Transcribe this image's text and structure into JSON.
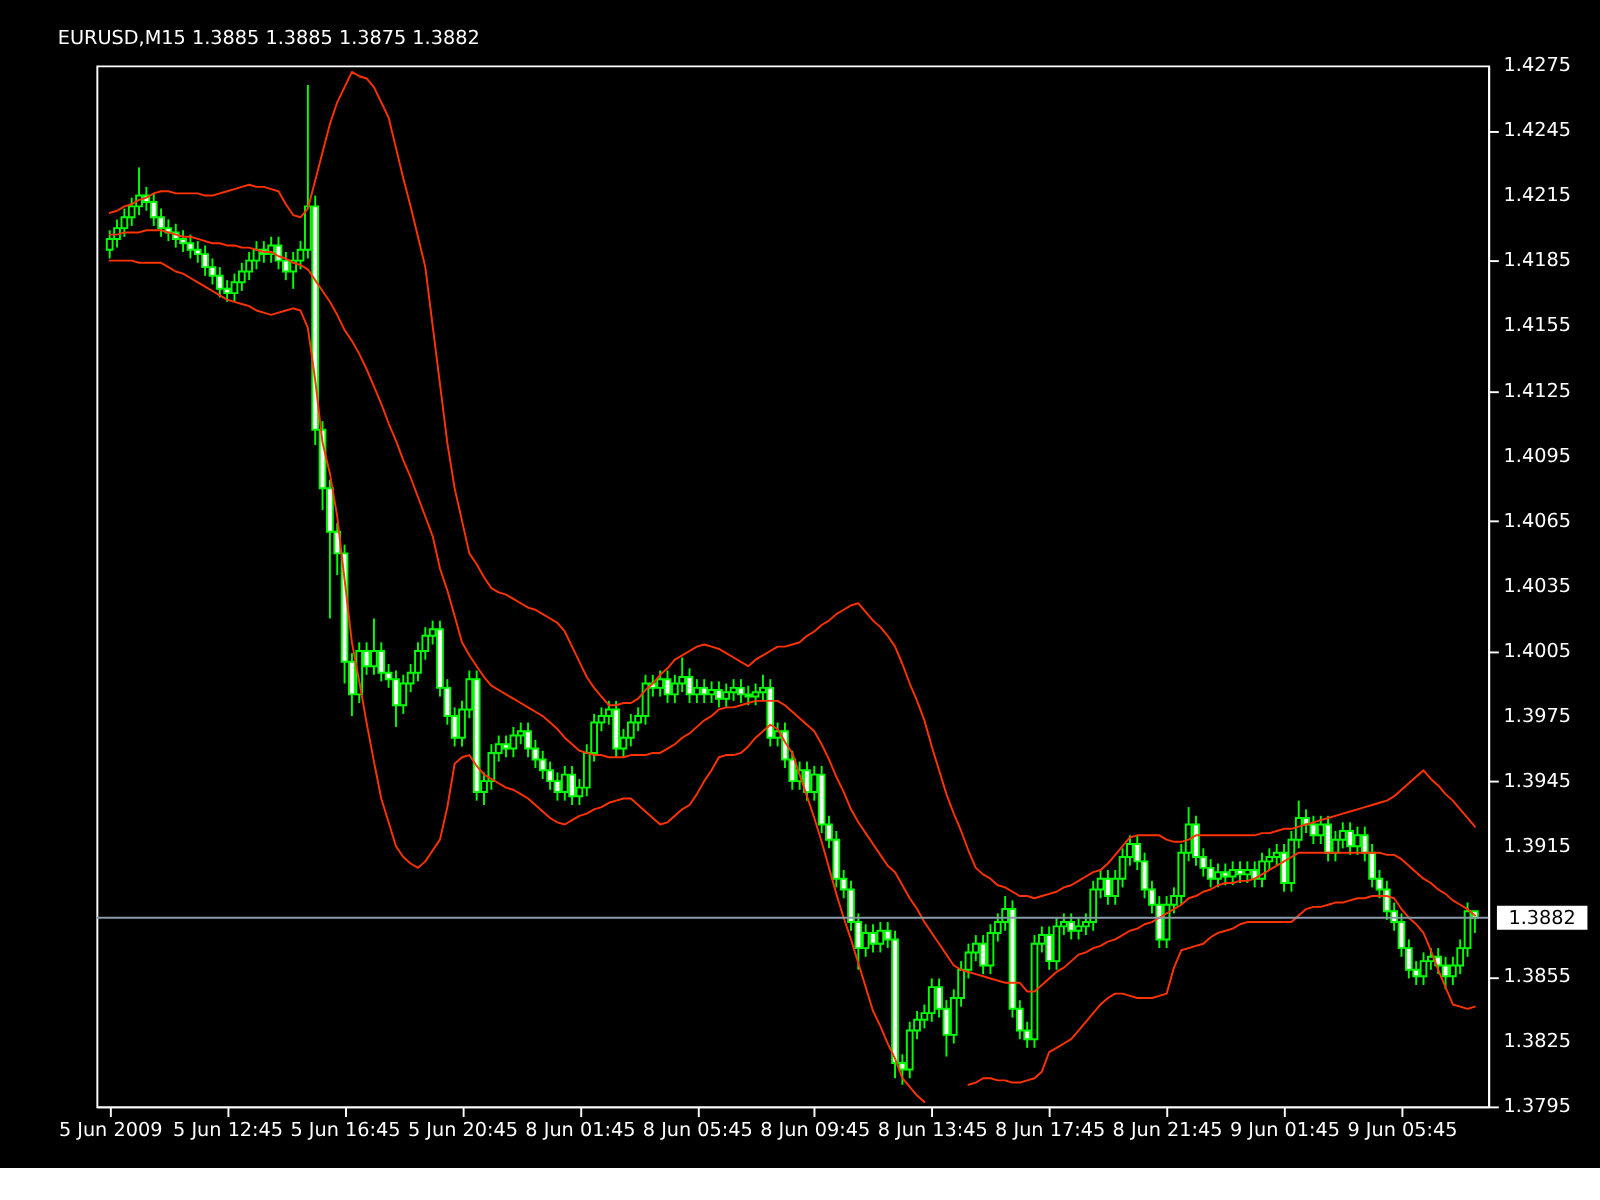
{
  "chart_data": {
    "type": "candlestick",
    "title": "EURUSD,M15 1.3885 1.3885 1.3875 1.3882",
    "color": "#00ff00",
    "categories": [
      "5 Jun 2009",
      null,
      null,
      null,
      null,
      null,
      null,
      null,
      null,
      null,
      null,
      null,
      null,
      null,
      null,
      null,
      "5 Jun 12:45",
      null,
      null,
      null,
      null,
      null,
      null,
      null,
      null,
      null,
      null,
      null,
      null,
      null,
      null,
      null,
      "5 Jun 16:45",
      null,
      null,
      null,
      null,
      null,
      null,
      null,
      null,
      null,
      null,
      null,
      null,
      null,
      null,
      null,
      "5 Jun 20:45",
      null,
      null,
      null,
      null,
      null,
      null,
      null,
      null,
      null,
      null,
      null,
      null,
      null,
      null,
      null,
      "8 Jun 01:45",
      null,
      null,
      null,
      null,
      null,
      null,
      null,
      null,
      null,
      null,
      null,
      null,
      null,
      null,
      null,
      "8 Jun 05:45",
      null,
      null,
      null,
      null,
      null,
      null,
      null,
      null,
      null,
      null,
      null,
      null,
      null,
      null,
      null,
      "8 Jun 09:45",
      null,
      null,
      null,
      null,
      null,
      null,
      null,
      null,
      null,
      null,
      null,
      null,
      null,
      null,
      null,
      "8 Jun 13:45",
      null,
      null,
      null,
      null,
      null,
      null,
      null,
      null,
      null,
      null,
      null,
      null,
      null,
      null,
      null,
      "8 Jun 17:45",
      null,
      null,
      null,
      null,
      null,
      null,
      null,
      null,
      null,
      null,
      null,
      null,
      null,
      null,
      null,
      "8 Jun 21:45",
      null,
      null,
      null,
      null,
      null,
      null,
      null,
      null,
      null,
      null,
      null,
      null,
      null,
      null,
      null,
      "9 Jun 01:45",
      null,
      null,
      null,
      null,
      null,
      null,
      null,
      null,
      null,
      null,
      null,
      null,
      null,
      null,
      null,
      "9 Jun 05:45",
      null,
      null,
      null,
      null,
      null,
      null,
      null,
      null,
      null,
      null
    ],
    "ohlc": [
      [
        1.419,
        1.4199,
        1.4186,
        1.4195
      ],
      [
        1.4195,
        1.4204,
        1.4191,
        1.42
      ],
      [
        1.42,
        1.4209,
        1.4196,
        1.4205
      ],
      [
        1.4205,
        1.4214,
        1.4201,
        1.421
      ],
      [
        1.421,
        1.4228,
        1.4206,
        1.4215
      ],
      [
        1.4215,
        1.4219,
        1.4208,
        1.4212
      ],
      [
        1.4212,
        1.4216,
        1.4201,
        1.4205
      ],
      [
        1.4205,
        1.4209,
        1.4196,
        1.42
      ],
      [
        1.42,
        1.4204,
        1.4194,
        1.4198
      ],
      [
        1.4198,
        1.4202,
        1.4191,
        1.4195
      ],
      [
        1.4195,
        1.4199,
        1.4189,
        1.4193
      ],
      [
        1.4193,
        1.4197,
        1.4186,
        1.419
      ],
      [
        1.419,
        1.4194,
        1.4184,
        1.4188
      ],
      [
        1.4188,
        1.4192,
        1.4178,
        1.4182
      ],
      [
        1.4182,
        1.4186,
        1.4174,
        1.4178
      ],
      [
        1.4178,
        1.4182,
        1.4168,
        1.4172
      ],
      [
        1.4172,
        1.4176,
        1.4166,
        1.417
      ],
      [
        1.417,
        1.4179,
        1.4166,
        1.4175
      ],
      [
        1.4175,
        1.4184,
        1.4171,
        1.418
      ],
      [
        1.418,
        1.4189,
        1.4176,
        1.4185
      ],
      [
        1.4185,
        1.4194,
        1.4181,
        1.419
      ],
      [
        1.419,
        1.4194,
        1.4184,
        1.4188
      ],
      [
        1.4188,
        1.4196,
        1.4184,
        1.4192
      ],
      [
        1.4192,
        1.4196,
        1.4181,
        1.4185
      ],
      [
        1.4185,
        1.4189,
        1.4176,
        1.418
      ],
      [
        1.418,
        1.4189,
        1.4172,
        1.4185
      ],
      [
        1.4185,
        1.4194,
        1.4181,
        1.419
      ],
      [
        1.419,
        1.4266,
        1.4186,
        1.421
      ],
      [
        1.421,
        1.4215,
        1.41,
        1.4107
      ],
      [
        1.4107,
        1.4111,
        1.407,
        1.408
      ],
      [
        1.408,
        1.4084,
        1.402,
        1.406
      ],
      [
        1.406,
        1.4064,
        1.404,
        1.405
      ],
      [
        1.405,
        1.4054,
        1.399,
        1.4
      ],
      [
        1.4,
        1.4004,
        1.3975,
        1.3985
      ],
      [
        1.3985,
        1.4009,
        1.3981,
        1.4005
      ],
      [
        1.4005,
        1.4009,
        1.3994,
        1.3998
      ],
      [
        1.3998,
        1.402,
        1.3994,
        1.4005
      ],
      [
        1.4005,
        1.4009,
        1.3991,
        1.3995
      ],
      [
        1.3995,
        1.3999,
        1.3988,
        1.3992
      ],
      [
        1.3992,
        1.3996,
        1.397,
        1.398
      ],
      [
        1.398,
        1.3994,
        1.3976,
        1.399
      ],
      [
        1.399,
        1.3999,
        1.3986,
        1.3995
      ],
      [
        1.3995,
        1.4009,
        1.3991,
        1.4005
      ],
      [
        1.4005,
        1.4016,
        1.4001,
        1.4012
      ],
      [
        1.4012,
        1.4019,
        1.4008,
        1.4015
      ],
      [
        1.4015,
        1.4019,
        1.3984,
        1.3988
      ],
      [
        1.3988,
        1.3992,
        1.3971,
        1.3975
      ],
      [
        1.3975,
        1.3979,
        1.3961,
        1.3965
      ],
      [
        1.3965,
        1.3982,
        1.3961,
        1.3978
      ],
      [
        1.3978,
        1.3996,
        1.3974,
        1.3992
      ],
      [
        1.3992,
        1.3996,
        1.3936,
        1.394
      ],
      [
        1.394,
        1.3949,
        1.3934,
        1.3945
      ],
      [
        1.3945,
        1.3962,
        1.3941,
        1.3958
      ],
      [
        1.3958,
        1.3966,
        1.3954,
        1.3962
      ],
      [
        1.3962,
        1.3966,
        1.3956,
        1.396
      ],
      [
        1.396,
        1.397,
        1.3956,
        1.3966
      ],
      [
        1.3966,
        1.3972,
        1.3962,
        1.3968
      ],
      [
        1.3968,
        1.3972,
        1.3956,
        1.396
      ],
      [
        1.396,
        1.3964,
        1.3951,
        1.3955
      ],
      [
        1.3955,
        1.3959,
        1.3946,
        1.395
      ],
      [
        1.395,
        1.3954,
        1.3941,
        1.3945
      ],
      [
        1.3945,
        1.3949,
        1.3936,
        1.394
      ],
      [
        1.394,
        1.3952,
        1.3936,
        1.3948
      ],
      [
        1.3948,
        1.3952,
        1.3934,
        1.3938
      ],
      [
        1.3938,
        1.3946,
        1.3934,
        1.3942
      ],
      [
        1.3942,
        1.3962,
        1.3938,
        1.3958
      ],
      [
        1.3958,
        1.3976,
        1.3954,
        1.3972
      ],
      [
        1.3972,
        1.3979,
        1.3968,
        1.3975
      ],
      [
        1.3975,
        1.3982,
        1.3971,
        1.3978
      ],
      [
        1.3978,
        1.3982,
        1.3956,
        1.396
      ],
      [
        1.396,
        1.3969,
        1.3956,
        1.3965
      ],
      [
        1.3965,
        1.3976,
        1.3961,
        1.3972
      ],
      [
        1.3972,
        1.3979,
        1.3968,
        1.3975
      ],
      [
        1.3975,
        1.3994,
        1.3971,
        1.399
      ],
      [
        1.399,
        1.3994,
        1.3984,
        1.3988
      ],
      [
        1.3988,
        1.3996,
        1.3984,
        1.3992
      ],
      [
        1.3992,
        1.3996,
        1.3981,
        1.3985
      ],
      [
        1.3985,
        1.3994,
        1.3981,
        1.399
      ],
      [
        1.399,
        1.4002,
        1.3986,
        1.3993
      ],
      [
        1.3993,
        1.3997,
        1.3981,
        1.3985
      ],
      [
        1.3985,
        1.3992,
        1.3981,
        1.3988
      ],
      [
        1.3988,
        1.3992,
        1.3981,
        1.3985
      ],
      [
        1.3985,
        1.3991,
        1.3981,
        1.3987
      ],
      [
        1.3987,
        1.3991,
        1.3979,
        1.3983
      ],
      [
        1.3983,
        1.399,
        1.3979,
        1.3986
      ],
      [
        1.3986,
        1.3992,
        1.3982,
        1.3988
      ],
      [
        1.3988,
        1.3992,
        1.3981,
        1.3985
      ],
      [
        1.3985,
        1.3989,
        1.398,
        1.3984
      ],
      [
        1.3984,
        1.399,
        1.398,
        1.3986
      ],
      [
        1.3986,
        1.3994,
        1.3982,
        1.3988
      ],
      [
        1.3988,
        1.3992,
        1.3961,
        1.3965
      ],
      [
        1.3965,
        1.3972,
        1.3961,
        1.3968
      ],
      [
        1.3968,
        1.3972,
        1.3951,
        1.3955
      ],
      [
        1.3955,
        1.3959,
        1.3941,
        1.3945
      ],
      [
        1.3945,
        1.3954,
        1.3941,
        1.395
      ],
      [
        1.395,
        1.3954,
        1.3936,
        1.394
      ],
      [
        1.394,
        1.3952,
        1.3936,
        1.3948
      ],
      [
        1.3948,
        1.3952,
        1.3921,
        1.3925
      ],
      [
        1.3925,
        1.3929,
        1.3914,
        1.3918
      ],
      [
        1.3918,
        1.3922,
        1.3896,
        1.39
      ],
      [
        1.39,
        1.3904,
        1.3891,
        1.3895
      ],
      [
        1.3895,
        1.3899,
        1.3876,
        1.388
      ],
      [
        1.388,
        1.3884,
        1.3858,
        1.3868
      ],
      [
        1.3868,
        1.3879,
        1.3864,
        1.3875
      ],
      [
        1.3875,
        1.3879,
        1.3866,
        1.387
      ],
      [
        1.387,
        1.388,
        1.3866,
        1.3876
      ],
      [
        1.3876,
        1.388,
        1.3868,
        1.3872
      ],
      [
        1.3872,
        1.3876,
        1.3808,
        1.3815
      ],
      [
        1.3815,
        1.3819,
        1.3805,
        1.3812
      ],
      [
        1.3812,
        1.3834,
        1.3808,
        1.383
      ],
      [
        1.383,
        1.3839,
        1.3826,
        1.3835
      ],
      [
        1.3835,
        1.3842,
        1.3831,
        1.3838
      ],
      [
        1.3838,
        1.3854,
        1.3834,
        1.385
      ],
      [
        1.385,
        1.3854,
        1.3836,
        1.384
      ],
      [
        1.384,
        1.3844,
        1.3818,
        1.3828
      ],
      [
        1.3828,
        1.3849,
        1.3824,
        1.3845
      ],
      [
        1.3845,
        1.3862,
        1.3841,
        1.3858
      ],
      [
        1.3858,
        1.387,
        1.3854,
        1.3866
      ],
      [
        1.3866,
        1.3874,
        1.3862,
        1.387
      ],
      [
        1.387,
        1.3874,
        1.3856,
        1.386
      ],
      [
        1.386,
        1.3879,
        1.3856,
        1.3875
      ],
      [
        1.3875,
        1.3884,
        1.3871,
        1.388
      ],
      [
        1.388,
        1.3892,
        1.3876,
        1.3886
      ],
      [
        1.3886,
        1.389,
        1.3836,
        1.384
      ],
      [
        1.384,
        1.3844,
        1.3826,
        1.383
      ],
      [
        1.383,
        1.3834,
        1.3822,
        1.3826
      ],
      [
        1.3826,
        1.3874,
        1.3822,
        1.387
      ],
      [
        1.387,
        1.3878,
        1.3866,
        1.3874
      ],
      [
        1.3874,
        1.3878,
        1.3858,
        1.3862
      ],
      [
        1.3862,
        1.3882,
        1.3858,
        1.3878
      ],
      [
        1.3878,
        1.3884,
        1.3874,
        1.388
      ],
      [
        1.388,
        1.3884,
        1.3872,
        1.3876
      ],
      [
        1.3876,
        1.3882,
        1.3872,
        1.3878
      ],
      [
        1.3878,
        1.3884,
        1.3874,
        1.388
      ],
      [
        1.388,
        1.3899,
        1.3876,
        1.3895
      ],
      [
        1.3895,
        1.3904,
        1.3891,
        1.39
      ],
      [
        1.39,
        1.3904,
        1.3888,
        1.3892
      ],
      [
        1.3892,
        1.3904,
        1.3888,
        1.39
      ],
      [
        1.39,
        1.3914,
        1.3896,
        1.391
      ],
      [
        1.391,
        1.392,
        1.3906,
        1.3916
      ],
      [
        1.3916,
        1.392,
        1.3904,
        1.3908
      ],
      [
        1.3908,
        1.3912,
        1.3891,
        1.3895
      ],
      [
        1.3895,
        1.3899,
        1.3884,
        1.3888
      ],
      [
        1.3888,
        1.3892,
        1.3868,
        1.3872
      ],
      [
        1.3872,
        1.3892,
        1.3868,
        1.3888
      ],
      [
        1.3888,
        1.3896,
        1.3884,
        1.3892
      ],
      [
        1.3892,
        1.3916,
        1.3888,
        1.3912
      ],
      [
        1.3912,
        1.3933,
        1.3908,
        1.3925
      ],
      [
        1.3925,
        1.3929,
        1.3906,
        1.391
      ],
      [
        1.391,
        1.3914,
        1.3901,
        1.3905
      ],
      [
        1.3905,
        1.3909,
        1.3896,
        1.39
      ],
      [
        1.39,
        1.3907,
        1.3896,
        1.3903
      ],
      [
        1.3903,
        1.3907,
        1.3897,
        1.3901
      ],
      [
        1.3901,
        1.3908,
        1.3897,
        1.3904
      ],
      [
        1.3904,
        1.3908,
        1.3898,
        1.3902
      ],
      [
        1.3902,
        1.3908,
        1.3898,
        1.3904
      ],
      [
        1.3904,
        1.3908,
        1.3896,
        1.39
      ],
      [
        1.39,
        1.3912,
        1.3896,
        1.3908
      ],
      [
        1.3908,
        1.3914,
        1.3904,
        1.391
      ],
      [
        1.391,
        1.3916,
        1.3906,
        1.3912
      ],
      [
        1.3912,
        1.3916,
        1.3894,
        1.3898
      ],
      [
        1.3898,
        1.3922,
        1.3894,
        1.3918
      ],
      [
        1.3918,
        1.3936,
        1.3914,
        1.3928
      ],
      [
        1.3928,
        1.3932,
        1.3921,
        1.3925
      ],
      [
        1.3925,
        1.3929,
        1.3916,
        1.392
      ],
      [
        1.392,
        1.3929,
        1.3916,
        1.3925
      ],
      [
        1.3925,
        1.3929,
        1.3908,
        1.3912
      ],
      [
        1.3912,
        1.3922,
        1.3908,
        1.3918
      ],
      [
        1.3918,
        1.3926,
        1.3914,
        1.3922
      ],
      [
        1.3922,
        1.3926,
        1.3911,
        1.3915
      ],
      [
        1.3915,
        1.3924,
        1.3911,
        1.392
      ],
      [
        1.392,
        1.3924,
        1.3908,
        1.3912
      ],
      [
        1.3912,
        1.3916,
        1.3896,
        1.39
      ],
      [
        1.39,
        1.3904,
        1.3891,
        1.3895
      ],
      [
        1.3895,
        1.3899,
        1.3881,
        1.3885
      ],
      [
        1.3885,
        1.3889,
        1.3876,
        1.388
      ],
      [
        1.388,
        1.3884,
        1.3864,
        1.3868
      ],
      [
        1.3868,
        1.3872,
        1.3854,
        1.3858
      ],
      [
        1.3858,
        1.3862,
        1.3851,
        1.3855
      ],
      [
        1.3855,
        1.3866,
        1.3851,
        1.3862
      ],
      [
        1.3862,
        1.3868,
        1.3858,
        1.3864
      ],
      [
        1.3864,
        1.3868,
        1.3856,
        1.386
      ],
      [
        1.386,
        1.3864,
        1.3849,
        1.3855
      ],
      [
        1.3855,
        1.3864,
        1.3851,
        1.386
      ],
      [
        1.386,
        1.3872,
        1.3856,
        1.3868
      ],
      [
        1.3868,
        1.3889,
        1.3864,
        1.3885
      ],
      [
        1.3885,
        1.3885,
        1.3875,
        1.3882
      ]
    ],
    "series": [
      {
        "type": "line",
        "color": "#ff3300",
        "values": [
          1.4207,
          1.4208,
          1.421,
          1.4211,
          1.4213,
          1.4214,
          1.4216,
          1.4217,
          1.4217,
          1.4216,
          1.4216,
          1.4216,
          1.4216,
          1.4215,
          1.4215,
          1.4216,
          1.4217,
          1.4218,
          1.4219,
          1.422,
          1.4219,
          1.4219,
          1.4218,
          1.4217,
          1.4211,
          1.4206,
          1.4205,
          1.4209,
          1.4222,
          1.4235,
          1.4248,
          1.4258,
          1.4265,
          1.4272,
          1.427,
          1.4269,
          1.4265,
          1.4258,
          1.4251,
          1.4237,
          1.4223,
          1.421,
          1.4196,
          1.4182,
          1.4155,
          1.4128,
          1.4101,
          1.408,
          1.4065,
          1.405,
          1.4045,
          1.4039,
          1.4034,
          1.4032,
          1.4031,
          1.4029,
          1.4027,
          1.4025,
          1.4024,
          1.4022,
          1.402,
          1.4018,
          1.4014,
          1.4007,
          1.4,
          1.3993,
          1.3988,
          1.3984,
          1.398,
          1.398,
          1.3981,
          1.3981,
          1.3983,
          1.3987,
          1.399,
          1.3994,
          1.3997,
          1.4001,
          1.4003,
          1.4005,
          1.4007,
          1.4008,
          1.4007,
          1.4006,
          1.4004,
          1.4002,
          1.4,
          1.3998,
          1.4001,
          1.4003,
          1.4005,
          1.4007,
          1.4007,
          1.4008,
          1.4009,
          1.4012,
          1.4014,
          1.4017,
          1.4019,
          1.4022,
          1.4024,
          1.4026,
          1.4027,
          1.4023,
          1.4019,
          1.4016,
          1.4012,
          1.4007,
          1.3999,
          1.399,
          1.3982,
          1.3973,
          1.3961,
          1.395,
          1.3939,
          1.393,
          1.3922,
          1.3913,
          1.3905,
          1.3902,
          1.39,
          1.3897,
          1.3896,
          1.3894,
          1.3892,
          1.3892,
          1.3891,
          1.3892,
          1.3893,
          1.3894,
          1.3896,
          1.3897,
          1.3899,
          1.3901,
          1.3903,
          1.3904,
          1.3907,
          1.3911,
          1.3915,
          1.3919,
          1.392,
          1.392,
          1.392,
          1.392,
          1.3918,
          1.3917,
          1.3917,
          1.3918,
          1.392,
          1.392,
          1.392,
          1.392,
          1.392,
          1.392,
          1.392,
          1.392,
          1.392,
          1.3921,
          1.3921,
          1.3922,
          1.3923,
          1.3923,
          1.3924,
          1.3925,
          1.3926,
          1.3927,
          1.3928,
          1.3929,
          1.393,
          1.3931,
          1.3932,
          1.3933,
          1.3934,
          1.3935,
          1.3936,
          1.3938,
          1.3941,
          1.3944,
          1.3947,
          1.395,
          1.3946,
          1.3943,
          1.3939,
          1.3936,
          1.3932,
          1.3928,
          1.3924
        ]
      },
      {
        "type": "line",
        "color": "#ff3300",
        "values": [
          1.4197,
          1.4197,
          1.4198,
          1.4198,
          1.4198,
          1.4199,
          1.4199,
          1.4199,
          1.4198,
          1.4197,
          1.4196,
          1.4196,
          1.4195,
          1.4194,
          1.4193,
          1.4193,
          1.4192,
          1.4192,
          1.4191,
          1.4191,
          1.419,
          1.4189,
          1.4189,
          1.4187,
          1.4186,
          1.4184,
          1.4183,
          1.4181,
          1.4176,
          1.4171,
          1.4166,
          1.416,
          1.4153,
          1.4148,
          1.4142,
          1.4135,
          1.4127,
          1.4119,
          1.411,
          1.4102,
          1.4093,
          1.4085,
          1.4076,
          1.4067,
          1.4058,
          1.4043,
          1.4033,
          1.4021,
          1.4009,
          1.4003,
          1.3998,
          1.3993,
          1.3989,
          1.3987,
          1.3985,
          1.3983,
          1.3981,
          1.3979,
          1.3977,
          1.3975,
          1.3972,
          1.3969,
          1.3965,
          1.3962,
          1.3959,
          1.3958,
          1.3957,
          1.3957,
          1.3956,
          1.3956,
          1.3956,
          1.3957,
          1.3957,
          1.3957,
          1.3958,
          1.3958,
          1.396,
          1.3962,
          1.3965,
          1.3967,
          1.397,
          1.3973,
          1.3975,
          1.3978,
          1.3979,
          1.3979,
          1.398,
          1.3981,
          1.3982,
          1.3982,
          1.3982,
          1.3982,
          1.398,
          1.3977,
          1.3974,
          1.3971,
          1.3968,
          1.3962,
          1.3955,
          1.3947,
          1.394,
          1.3932,
          1.3926,
          1.3921,
          1.3916,
          1.3911,
          1.3906,
          1.3903,
          1.3897,
          1.3891,
          1.3886,
          1.388,
          1.3875,
          1.387,
          1.3865,
          1.386,
          1.3858,
          1.3857,
          1.3856,
          1.3855,
          1.3854,
          1.3853,
          1.3852,
          1.3852,
          1.3852,
          1.3848,
          1.3848,
          1.3851,
          1.3854,
          1.3857,
          1.3859,
          1.3862,
          1.3865,
          1.3866,
          1.3868,
          1.3869,
          1.3871,
          1.3872,
          1.3874,
          1.3876,
          1.3877,
          1.3879,
          1.388,
          1.3882,
          1.3884,
          1.3886,
          1.3888,
          1.3891,
          1.3892,
          1.3894,
          1.3895,
          1.3897,
          1.3898,
          1.3898,
          1.3899,
          1.3899,
          1.39,
          1.3902,
          1.3904,
          1.3906,
          1.3908,
          1.391,
          1.3912,
          1.3912,
          1.3912,
          1.3912,
          1.3912,
          1.3912,
          1.3912,
          1.3912,
          1.3912,
          1.3912,
          1.3912,
          1.3912,
          1.3911,
          1.3911,
          1.3909,
          1.3906,
          1.3903,
          1.39,
          1.3898,
          1.3895,
          1.3893,
          1.389,
          1.3888,
          1.3886,
          1.3883
        ]
      },
      {
        "type": "line",
        "color": "#ff3300",
        "values": [
          1.4185,
          1.4185,
          1.4185,
          1.4185,
          1.4184,
          1.4184,
          1.4184,
          1.4184,
          1.4182,
          1.418,
          1.4179,
          1.4177,
          1.4175,
          1.4173,
          1.4171,
          1.4169,
          1.4167,
          1.4166,
          1.4165,
          1.4164,
          1.4162,
          1.4161,
          1.416,
          1.4161,
          1.4162,
          1.4163,
          1.4162,
          1.4154,
          1.413,
          1.4101,
          1.4087,
          1.4067,
          1.4038,
          1.4009,
          1.3991,
          1.3972,
          1.3954,
          1.3937,
          1.3926,
          1.3915,
          1.391,
          1.3907,
          1.3905,
          1.3908,
          1.3913,
          1.3918,
          1.3933,
          1.3953,
          1.3956,
          1.3957,
          1.3952,
          1.3948,
          1.3946,
          1.3944,
          1.3942,
          1.3941,
          1.3939,
          1.3937,
          1.3934,
          1.3931,
          1.3928,
          1.3926,
          1.3925,
          1.3927,
          1.3929,
          1.393,
          1.3932,
          1.3933,
          1.3935,
          1.3936,
          1.3937,
          1.3937,
          1.3934,
          1.3931,
          1.3928,
          1.3925,
          1.3926,
          1.3929,
          1.3932,
          1.3934,
          1.3939,
          1.3945,
          1.395,
          1.3956,
          1.3957,
          1.3957,
          1.3958,
          1.3961,
          1.3965,
          1.3968,
          1.3971,
          1.3969,
          1.3963,
          1.3958,
          1.3948,
          1.3938,
          1.3928,
          1.3917,
          1.3905,
          1.3893,
          1.3882,
          1.3872,
          1.3861,
          1.385,
          1.3839,
          1.3832,
          1.3824,
          1.3817,
          1.3808,
          1.3804,
          1.38,
          1.3797,
          null,
          null,
          null,
          null,
          null,
          1.3805,
          1.3806,
          1.3808,
          1.3808,
          1.3807,
          1.3807,
          1.3806,
          1.3806,
          1.3807,
          1.3808,
          1.3811,
          1.382,
          1.3822,
          1.3824,
          1.3826,
          1.383,
          1.3834,
          1.3838,
          1.3842,
          1.3845,
          1.3847,
          1.3847,
          1.3846,
          1.3845,
          1.3845,
          1.3845,
          1.3846,
          1.3847,
          1.3859,
          1.3867,
          1.3868,
          1.3869,
          1.387,
          1.3873,
          1.3875,
          1.3876,
          1.3877,
          1.3879,
          1.388,
          1.388,
          1.388,
          1.388,
          1.388,
          1.388,
          1.388,
          1.3883,
          1.3886,
          1.3887,
          1.3887,
          1.3888,
          1.3889,
          1.3889,
          1.389,
          1.3891,
          1.3891,
          1.3892,
          1.3892,
          1.3892,
          1.3891,
          1.3886,
          1.3882,
          1.3879,
          1.3875,
          1.3867,
          1.3858,
          1.385,
          1.3842,
          1.3841,
          1.384,
          1.3841
        ]
      }
    ],
    "ylim": [
      1.3795,
      1.4275
    ],
    "yticks": [
      1.3795,
      1.3825,
      1.3855,
      1.3915,
      1.3945,
      1.3975,
      1.4005,
      1.4035,
      1.4065,
      1.4095,
      1.4125,
      1.4155,
      1.4185,
      1.4215,
      1.4245,
      1.4275
    ],
    "ref_lines": [
      {
        "axis": "y",
        "value": 1.3882,
        "label": "1.3882",
        "color": "#8a9aa8"
      }
    ]
  }
}
